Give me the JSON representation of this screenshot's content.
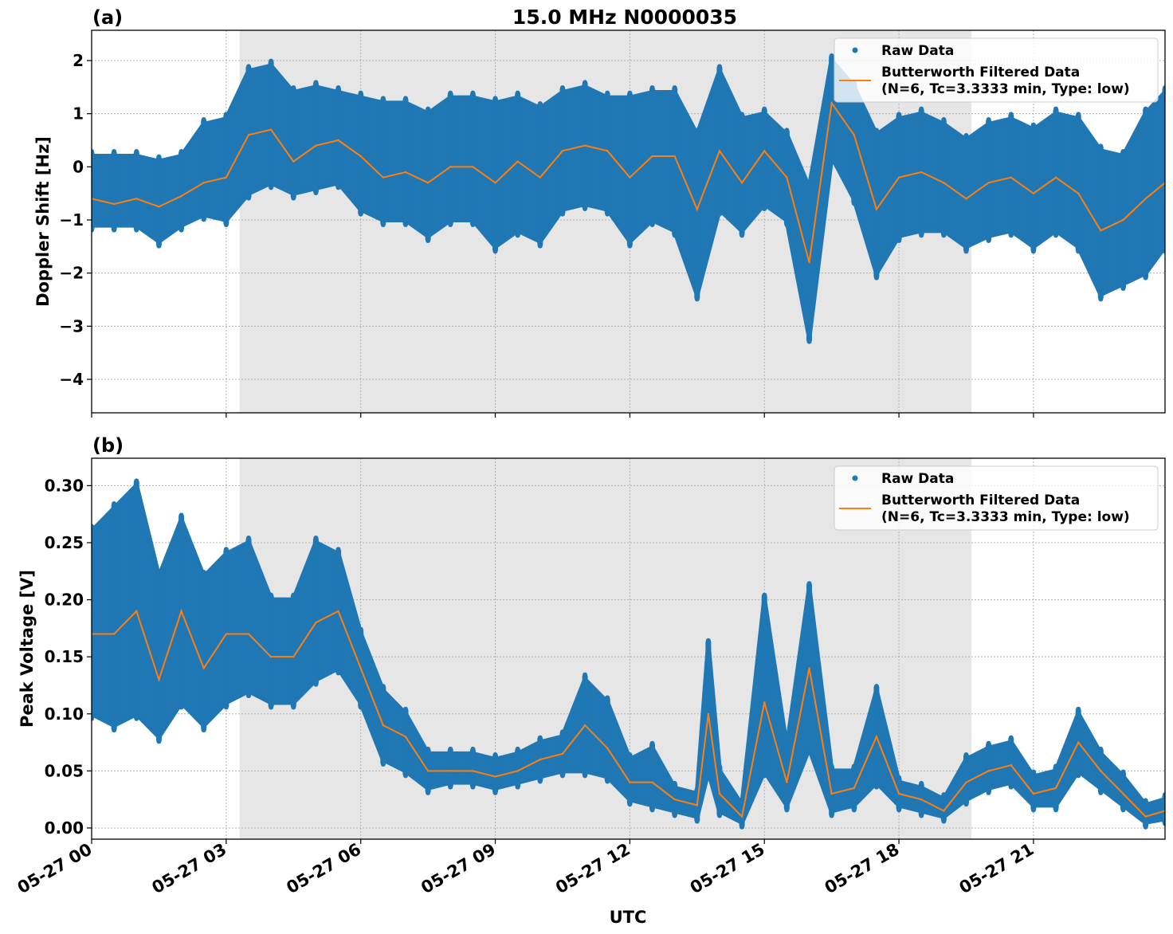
{
  "title": "15.0 MHz N0000035",
  "xlabel": "UTC",
  "xtick_labels": [
    "05-27 00",
    "05-27 03",
    "05-27 06",
    "05-27 09",
    "05-27 12",
    "05-27 15",
    "05-27 18",
    "05-27 21"
  ],
  "xtick_times": [
    "00:00",
    "03:00",
    "06:00",
    "09:00",
    "12:00",
    "15:00",
    "18:00",
    "21:00"
  ],
  "xlim": [
    "00:00",
    "23:56"
  ],
  "shaded_interval": [
    "03:18",
    "19:37"
  ],
  "colors": {
    "raw": "#1f77b4",
    "filtered": "#ff7f0e",
    "shade": "#e6e6e6"
  },
  "legend": {
    "raw": "Raw Data",
    "filtered_line1": "Butterworth Filtered Data",
    "filtered_line2": "(N=6, Tc=3.3333 min, Type: low)",
    "placement": "upper right"
  },
  "chart_data": [
    {
      "type": "scatter+line",
      "panel_label": "(a)",
      "ylabel": "Doppler Shift [Hz]",
      "ylim": [
        -4.63,
        2.57
      ],
      "yticks": [
        -4,
        -3,
        -2,
        -1,
        0,
        1,
        2
      ],
      "ytick_labels": [
        "−4",
        "−3",
        "−2",
        "−1",
        "0",
        "1",
        "2"
      ],
      "grid": true,
      "columns": [
        "time_utc",
        "filtered",
        "raw_min",
        "raw_max"
      ],
      "points": [
        [
          "00:00",
          -0.6,
          -1.1,
          0.2
        ],
        [
          "00:30",
          -0.7,
          -1.1,
          0.2
        ],
        [
          "01:00",
          -0.6,
          -1.1,
          0.2
        ],
        [
          "01:30",
          -0.75,
          -1.4,
          0.1
        ],
        [
          "02:00",
          -0.55,
          -1.1,
          0.2
        ],
        [
          "02:30",
          -0.3,
          -0.9,
          0.8
        ],
        [
          "03:00",
          -0.2,
          -1.0,
          0.9
        ],
        [
          "03:30",
          0.6,
          -0.5,
          1.8
        ],
        [
          "04:00",
          0.7,
          -0.3,
          1.9
        ],
        [
          "04:30",
          0.1,
          -0.5,
          1.4
        ],
        [
          "05:00",
          0.4,
          -0.4,
          1.5
        ],
        [
          "05:30",
          0.5,
          -0.3,
          1.4
        ],
        [
          "06:00",
          0.2,
          -0.8,
          1.3
        ],
        [
          "06:30",
          -0.2,
          -1.0,
          1.2
        ],
        [
          "07:00",
          -0.1,
          -1.0,
          1.2
        ],
        [
          "07:30",
          -0.3,
          -1.3,
          1.0
        ],
        [
          "08:00",
          0.0,
          -1.0,
          1.3
        ],
        [
          "08:30",
          0.0,
          -1.0,
          1.3
        ],
        [
          "09:00",
          -0.3,
          -1.5,
          1.2
        ],
        [
          "09:30",
          0.1,
          -1.2,
          1.3
        ],
        [
          "10:00",
          -0.2,
          -1.4,
          1.1
        ],
        [
          "10:30",
          0.3,
          -0.8,
          1.4
        ],
        [
          "11:00",
          0.4,
          -0.7,
          1.5
        ],
        [
          "11:30",
          0.3,
          -0.8,
          1.3
        ],
        [
          "12:00",
          -0.2,
          -1.4,
          1.3
        ],
        [
          "12:30",
          0.2,
          -1.0,
          1.4
        ],
        [
          "13:00",
          0.2,
          -1.2,
          1.4
        ],
        [
          "13:30",
          -0.8,
          -2.4,
          0.6
        ],
        [
          "14:00",
          0.3,
          -0.8,
          1.8
        ],
        [
          "14:30",
          -0.3,
          -1.2,
          0.9
        ],
        [
          "15:00",
          0.3,
          -0.7,
          1.0
        ],
        [
          "15:30",
          -0.2,
          -1.0,
          0.6
        ],
        [
          "16:00",
          -1.8,
          -3.2,
          -0.4
        ],
        [
          "16:30",
          1.2,
          0.2,
          2.0
        ],
        [
          "17:00",
          0.6,
          -0.6,
          1.5
        ],
        [
          "17:30",
          -0.8,
          -2.0,
          0.6
        ],
        [
          "18:00",
          -0.2,
          -1.3,
          0.9
        ],
        [
          "18:30",
          -0.1,
          -1.2,
          1.0
        ],
        [
          "19:00",
          -0.3,
          -1.2,
          0.8
        ],
        [
          "19:30",
          -0.6,
          -1.5,
          0.5
        ],
        [
          "20:00",
          -0.3,
          -1.3,
          0.8
        ],
        [
          "20:30",
          -0.2,
          -1.2,
          0.9
        ],
        [
          "21:00",
          -0.5,
          -1.5,
          0.7
        ],
        [
          "21:30",
          -0.2,
          -1.2,
          1.0
        ],
        [
          "22:00",
          -0.5,
          -1.5,
          0.9
        ],
        [
          "22:30",
          -1.2,
          -2.4,
          0.3
        ],
        [
          "23:00",
          -1.0,
          -2.2,
          0.2
        ],
        [
          "23:30",
          -0.6,
          -2.0,
          1.0
        ],
        [
          "23:56",
          -0.3,
          -1.5,
          1.4
        ]
      ]
    },
    {
      "type": "scatter+line",
      "panel_label": "(b)",
      "ylabel": "Peak Voltage [V]",
      "ylim": [
        -0.0098,
        0.324
      ],
      "yticks": [
        0,
        0.05,
        0.1,
        0.15,
        0.2,
        0.25,
        0.3
      ],
      "ytick_labels": [
        "0.00",
        "0.05",
        "0.10",
        "0.15",
        "0.20",
        "0.25",
        "0.30"
      ],
      "grid": true,
      "columns": [
        "time_utc",
        "filtered",
        "raw_min",
        "raw_max"
      ],
      "points": [
        [
          "00:00",
          0.17,
          0.1,
          0.26
        ],
        [
          "00:30",
          0.17,
          0.09,
          0.28
        ],
        [
          "01:00",
          0.19,
          0.1,
          0.3
        ],
        [
          "01:30",
          0.13,
          0.08,
          0.22
        ],
        [
          "02:00",
          0.19,
          0.11,
          0.27
        ],
        [
          "02:30",
          0.14,
          0.09,
          0.22
        ],
        [
          "03:00",
          0.17,
          0.11,
          0.24
        ],
        [
          "03:30",
          0.17,
          0.12,
          0.25
        ],
        [
          "04:00",
          0.15,
          0.11,
          0.2
        ],
        [
          "04:30",
          0.15,
          0.11,
          0.2
        ],
        [
          "05:00",
          0.18,
          0.13,
          0.25
        ],
        [
          "05:30",
          0.19,
          0.14,
          0.24
        ],
        [
          "06:00",
          0.14,
          0.11,
          0.17
        ],
        [
          "06:30",
          0.09,
          0.06,
          0.12
        ],
        [
          "07:00",
          0.08,
          0.05,
          0.1
        ],
        [
          "07:30",
          0.05,
          0.035,
          0.065
        ],
        [
          "08:00",
          0.05,
          0.04,
          0.065
        ],
        [
          "08:30",
          0.05,
          0.04,
          0.065
        ],
        [
          "09:00",
          0.045,
          0.035,
          0.06
        ],
        [
          "09:30",
          0.05,
          0.04,
          0.065
        ],
        [
          "10:00",
          0.06,
          0.045,
          0.075
        ],
        [
          "10:30",
          0.065,
          0.05,
          0.08
        ],
        [
          "11:00",
          0.09,
          0.05,
          0.13
        ],
        [
          "11:30",
          0.07,
          0.045,
          0.11
        ],
        [
          "12:00",
          0.04,
          0.025,
          0.06
        ],
        [
          "12:30",
          0.04,
          0.02,
          0.07
        ],
        [
          "13:00",
          0.025,
          0.015,
          0.035
        ],
        [
          "13:30",
          0.02,
          0.01,
          0.03
        ],
        [
          "13:45",
          0.1,
          0.05,
          0.16
        ],
        [
          "14:00",
          0.03,
          0.015,
          0.05
        ],
        [
          "14:30",
          0.01,
          0.005,
          0.02
        ],
        [
          "15:00",
          0.11,
          0.05,
          0.2
        ],
        [
          "15:30",
          0.04,
          0.02,
          0.07
        ],
        [
          "16:00",
          0.14,
          0.07,
          0.21
        ],
        [
          "16:30",
          0.03,
          0.015,
          0.05
        ],
        [
          "17:00",
          0.035,
          0.02,
          0.05
        ],
        [
          "17:30",
          0.08,
          0.04,
          0.12
        ],
        [
          "18:00",
          0.03,
          0.02,
          0.04
        ],
        [
          "18:30",
          0.025,
          0.015,
          0.035
        ],
        [
          "19:00",
          0.015,
          0.01,
          0.025
        ],
        [
          "19:30",
          0.04,
          0.025,
          0.06
        ],
        [
          "20:00",
          0.05,
          0.035,
          0.07
        ],
        [
          "20:30",
          0.055,
          0.04,
          0.075
        ],
        [
          "21:00",
          0.03,
          0.02,
          0.045
        ],
        [
          "21:30",
          0.035,
          0.02,
          0.05
        ],
        [
          "22:00",
          0.075,
          0.05,
          0.1
        ],
        [
          "22:30",
          0.05,
          0.035,
          0.065
        ],
        [
          "23:00",
          0.03,
          0.02,
          0.045
        ],
        [
          "23:30",
          0.01,
          0.005,
          0.02
        ],
        [
          "23:56",
          0.015,
          0.008,
          0.025
        ]
      ]
    }
  ]
}
